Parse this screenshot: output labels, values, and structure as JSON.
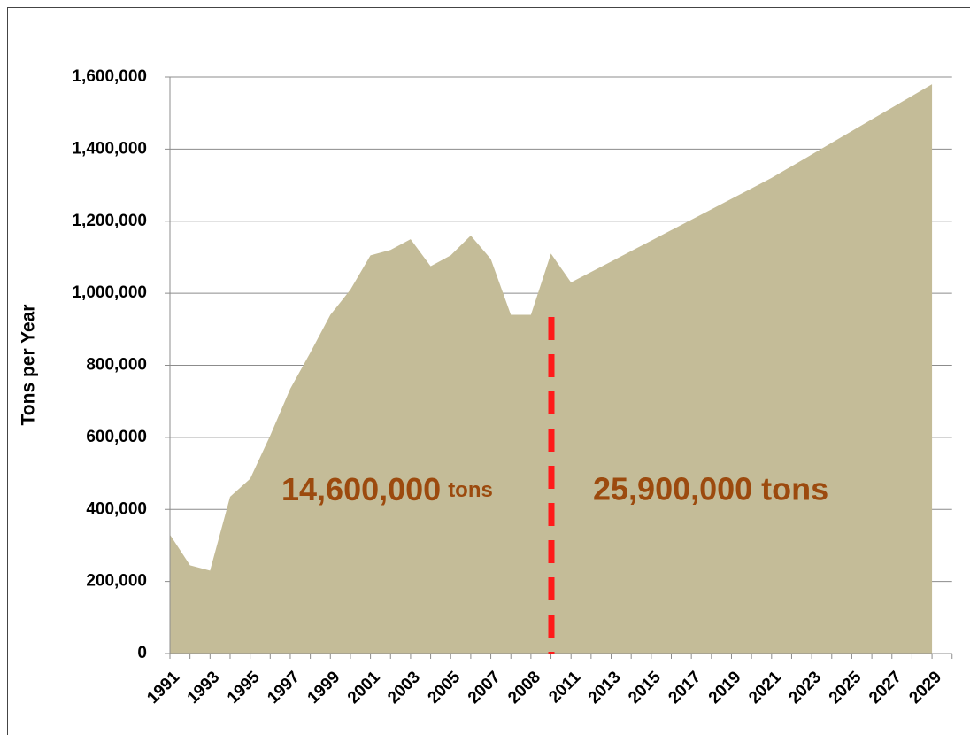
{
  "chart_data": {
    "type": "area",
    "ylabel": "Tons per Year",
    "categories": [
      "1991",
      null,
      "1993",
      null,
      "1995",
      null,
      "1997",
      null,
      "1999",
      null,
      "2001",
      null,
      "2003",
      null,
      "2005",
      null,
      "2007",
      null,
      "2008",
      null,
      "2011",
      null,
      "2013",
      null,
      "2015",
      null,
      "2017",
      null,
      "2019",
      null,
      "2021",
      null,
      "2023",
      null,
      "2025",
      null,
      "2027",
      null,
      "2029"
    ],
    "values": [
      330000,
      245000,
      230000,
      435000,
      485000,
      605000,
      735000,
      835000,
      940000,
      1010000,
      1105000,
      1120000,
      1150000,
      1075000,
      1105000,
      1160000,
      1095000,
      940000,
      940000,
      1110000,
      1030000,
      1059000,
      1088000,
      1117000,
      1146000,
      1175000,
      1204000,
      1233000,
      1262000,
      1291000,
      1320000,
      1352500,
      1385000,
      1417500,
      1450000,
      1482500,
      1515000,
      1547500,
      1580000
    ],
    "color": "#c4bc98",
    "ylim": [
      0,
      1600000
    ],
    "yticks": [
      0,
      {
        "value": 200000,
        "label": "200,000"
      },
      {
        "value": 400000,
        "label": "400,000"
      },
      {
        "value": 600000,
        "label": "600,000"
      },
      {
        "value": 800000,
        "label": "800,000"
      },
      {
        "value": 1000000,
        "label": "1,000,000"
      },
      {
        "value": 1200000,
        "label": "1,200,000"
      },
      {
        "value": 1400000,
        "label": "1,400,000"
      },
      {
        "value": 1600000,
        "label": "1,600,000"
      }
    ],
    "grid": true,
    "annotations": [
      {
        "text": "14,600,000",
        "suffix": "tons"
      },
      {
        "text": "25,900,000 tons"
      }
    ],
    "annotation_color": "#9c4a0e"
  }
}
